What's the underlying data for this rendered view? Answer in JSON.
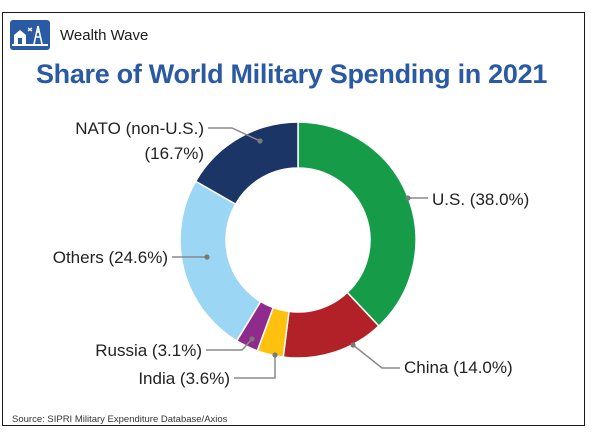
{
  "brand": {
    "name": "Wealth Wave",
    "logo_icon": "house-and-oil-rig-logo"
  },
  "source": "Source: SIPRI Military Expenditure Database/Axios",
  "chart_data": {
    "type": "donut",
    "title": "Share of World Military Spending in 2021",
    "unit": "%",
    "slices": [
      {
        "label": "U.S. (38.0%)",
        "name": "U.S.",
        "value": 38.0,
        "color": "#169b48"
      },
      {
        "label": "China (14.0%)",
        "name": "China",
        "value": 14.0,
        "color": "#b22127"
      },
      {
        "label": "India (3.6%)",
        "name": "India",
        "value": 3.6,
        "color": "#fec10e"
      },
      {
        "label": "Russia (3.1%)",
        "name": "Russia",
        "value": 3.1,
        "color": "#8e2b8c"
      },
      {
        "label": "Others (24.6%)",
        "name": "Others",
        "value": 24.6,
        "color": "#9bd6f4"
      },
      {
        "label": "NATO (non-U.S.) (16.7%)",
        "label_lines": [
          "NATO (non-U.S.)",
          "(16.7%)"
        ],
        "name": "NATO (non-U.S.)",
        "value": 16.7,
        "color": "#1b3566"
      }
    ]
  }
}
